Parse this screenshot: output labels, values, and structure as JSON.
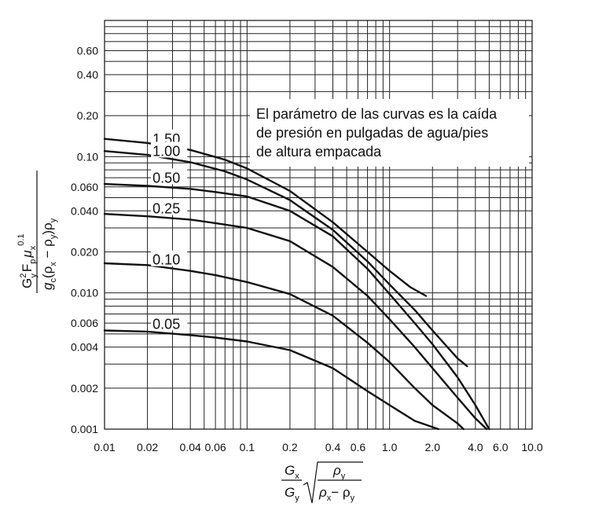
{
  "chart_data": {
    "type": "line",
    "title": "",
    "x_scale": "log",
    "y_scale": "log",
    "xlim": [
      0.01,
      10.0
    ],
    "ylim": [
      0.001,
      1.0
    ],
    "grid": true,
    "x_ticks": [
      "0.01",
      "0.02",
      "0.04",
      "0.06",
      "0.1",
      "0.2",
      "0.4",
      "0.6",
      "1.0",
      "2.0",
      "4.0",
      "6.0",
      "10.0"
    ],
    "y_ticks": [
      "0.60",
      "0.40",
      "0.20",
      "0.10",
      "0.060",
      "0.040",
      "0.020",
      "0.010",
      "0.006",
      "0.004",
      "0.002",
      "0.001"
    ],
    "x_tick_values": [
      0.01,
      0.02,
      0.04,
      0.06,
      0.1,
      0.2,
      0.4,
      0.6,
      1.0,
      2.0,
      4.0,
      6.0,
      10.0
    ],
    "y_tick_values": [
      0.6,
      0.4,
      0.2,
      0.1,
      0.06,
      0.04,
      0.02,
      0.01,
      0.006,
      0.004,
      0.002,
      0.001
    ],
    "annotation": {
      "lines": [
        "El parámetro de las curvas es la caída",
        "de presión en pulgadas de agua/pies",
        "de altura empacada"
      ]
    },
    "series": [
      {
        "name": "1.50",
        "points": [
          [
            0.01,
            0.135
          ],
          [
            0.02,
            0.126
          ],
          [
            0.04,
            0.112
          ],
          [
            0.07,
            0.095
          ],
          [
            0.1,
            0.082
          ],
          [
            0.2,
            0.056
          ],
          [
            0.4,
            0.033
          ],
          [
            0.7,
            0.02
          ],
          [
            1.0,
            0.0145
          ],
          [
            1.4,
            0.011
          ],
          [
            1.8,
            0.0095
          ]
        ]
      },
      {
        "name": "1.00",
        "points": [
          [
            0.01,
            0.11
          ],
          [
            0.02,
            0.103
          ],
          [
            0.04,
            0.091
          ],
          [
            0.07,
            0.078
          ],
          [
            0.1,
            0.068
          ],
          [
            0.2,
            0.048
          ],
          [
            0.4,
            0.029
          ],
          [
            0.7,
            0.017
          ],
          [
            1.0,
            0.0115
          ],
          [
            1.5,
            0.0075
          ],
          [
            2.0,
            0.0053
          ],
          [
            3.0,
            0.0033
          ],
          [
            3.5,
            0.0029
          ]
        ]
      },
      {
        "name": "0.50",
        "points": [
          [
            0.01,
            0.063
          ],
          [
            0.02,
            0.061
          ],
          [
            0.04,
            0.058
          ],
          [
            0.06,
            0.055
          ],
          [
            0.1,
            0.051
          ],
          [
            0.2,
            0.04
          ],
          [
            0.4,
            0.026
          ],
          [
            0.7,
            0.015
          ],
          [
            1.0,
            0.0098
          ],
          [
            1.5,
            0.006
          ],
          [
            2.0,
            0.0042
          ],
          [
            3.0,
            0.0024
          ],
          [
            4.0,
            0.0015
          ],
          [
            5.0,
            0.001
          ]
        ]
      },
      {
        "name": "0.25",
        "points": [
          [
            0.01,
            0.038
          ],
          [
            0.02,
            0.0365
          ],
          [
            0.04,
            0.0345
          ],
          [
            0.06,
            0.0325
          ],
          [
            0.1,
            0.03
          ],
          [
            0.2,
            0.024
          ],
          [
            0.4,
            0.0155
          ],
          [
            0.7,
            0.0095
          ],
          [
            1.0,
            0.0064
          ],
          [
            1.5,
            0.004
          ],
          [
            2.0,
            0.0028
          ],
          [
            3.0,
            0.0017
          ],
          [
            4.0,
            0.0012
          ],
          [
            4.8,
            0.001
          ]
        ]
      },
      {
        "name": "0.10",
        "points": [
          [
            0.01,
            0.0165
          ],
          [
            0.02,
            0.016
          ],
          [
            0.04,
            0.0145
          ],
          [
            0.06,
            0.0135
          ],
          [
            0.1,
            0.012
          ],
          [
            0.2,
            0.0098
          ],
          [
            0.4,
            0.0068
          ],
          [
            0.7,
            0.0043
          ],
          [
            1.0,
            0.0031
          ],
          [
            1.5,
            0.002
          ],
          [
            2.0,
            0.0015
          ],
          [
            3.0,
            0.0011
          ],
          [
            3.3,
            0.001
          ]
        ]
      },
      {
        "name": "0.05",
        "points": [
          [
            0.01,
            0.0053
          ],
          [
            0.02,
            0.0052
          ],
          [
            0.04,
            0.0049
          ],
          [
            0.06,
            0.0047
          ],
          [
            0.1,
            0.0044
          ],
          [
            0.2,
            0.0038
          ],
          [
            0.4,
            0.0028
          ],
          [
            0.7,
            0.0019
          ],
          [
            1.0,
            0.0015
          ],
          [
            1.5,
            0.00115
          ],
          [
            2.2,
            0.001
          ]
        ]
      }
    ]
  },
  "axes": {
    "y_label": {
      "numerator_main": "G",
      "numerator_sup_y": "2",
      "numerator_sub_y": "y",
      "numerator_F": "F",
      "numerator_sub_p": "p",
      "numerator_mu": "μ",
      "numerator_sub_x": "x",
      "numerator_sup_exp": "0.1",
      "denominator": "g",
      "denominator_sub_c": "c",
      "denominator_rest": "(ρ",
      "denominator_sub_x": "x",
      "denominator_minus": " − ρ",
      "denominator_sub_y": "y",
      "denominator_close": ")ρ",
      "denominator_sub_y2": "y"
    },
    "x_label": {
      "frac_num": "G",
      "frac_num_sub": "x",
      "frac_den": "G",
      "frac_den_sub": "y",
      "sqrt_num": "ρ",
      "sqrt_num_sub": "y",
      "sqrt_den_a": "ρ",
      "sqrt_den_a_sub": "x",
      "sqrt_den_minus": "− ρ",
      "sqrt_den_b_sub": "y"
    }
  }
}
